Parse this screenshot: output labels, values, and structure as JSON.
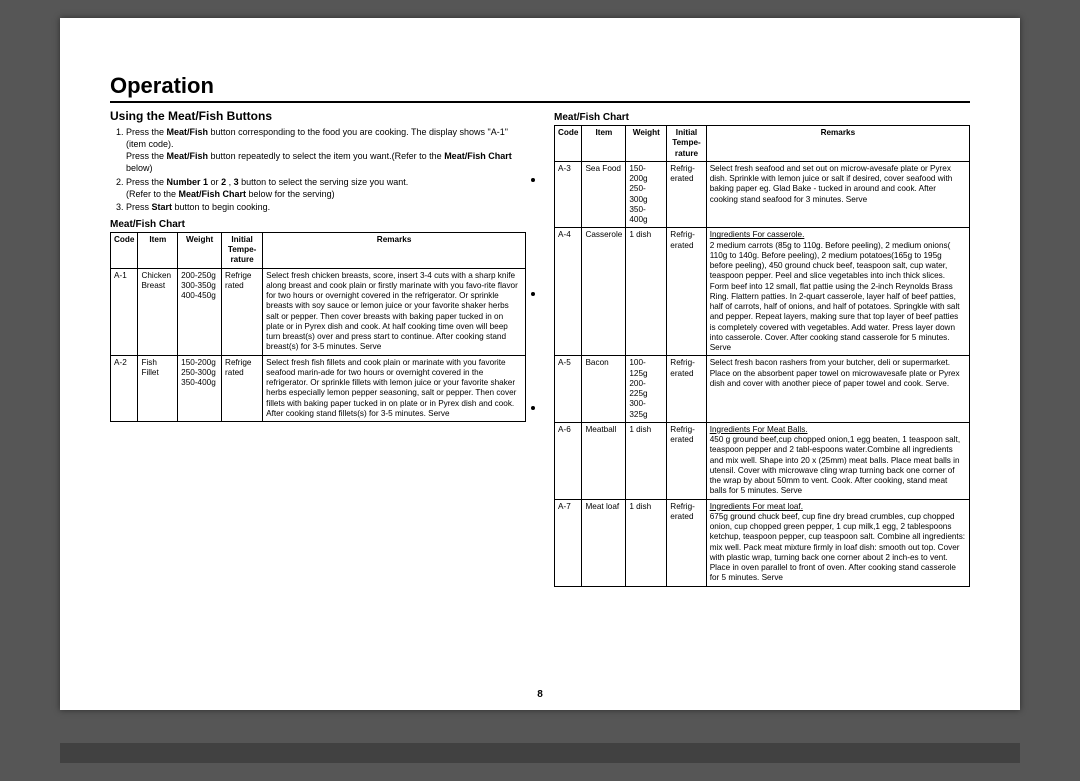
{
  "page_number": "8",
  "title": "Operation",
  "left": {
    "heading": "Using the Meat/Fish Buttons",
    "steps": [
      {
        "num": "1.",
        "text_a": "Press the ",
        "b1": "Meat/Fish",
        "text_b": " button corresponding to the food you are cooking. The display shows \"A-1\"(item code).",
        "sub_a": "Press the ",
        "sub_b1": "Meat/Fish",
        "sub_b": " button repeatedly to select the item you want.(Refer to the ",
        "sub_b2": "Meat/Fish Chart",
        "sub_c": " below)"
      },
      {
        "num": "2.",
        "text_a": "Press the ",
        "b1": "Number 1",
        "text_b": " or ",
        "b2": "2",
        "text_c": " , ",
        "b3": "3",
        "text_d": " button to select the serving size you want.",
        "sub_a": "(Refer to the ",
        "sub_b1": "Meat/Fish Chart",
        "sub_b": " below for the serving)"
      },
      {
        "num": "3.",
        "text_a": "Press ",
        "b1": "Start",
        "text_b": " button to begin cooking."
      }
    ],
    "chart_label": "Meat/Fish Chart",
    "headers": {
      "code": "Code",
      "item": "Item",
      "weight": "Weight",
      "temp": "Initial Tempe-rature",
      "remarks": "Remarks"
    },
    "rows": [
      {
        "code": "A-1",
        "item": "Chicken Breast",
        "weight": "200-250g 300-350g 400-450g",
        "temp": "Refrige rated",
        "remarks": "Select fresh chicken breasts, score, insert 3-4 cuts with a sharp knife along breast and cook plain or firstly marinate with you favo-rite flavor for two hours or overnight covered in the refrigerator. Or sprinkle breasts with soy sauce or lemon juice or your favorite shaker herbs salt or pepper. Then cover breasts with baking paper tucked in on plate or in Pyrex dish and cook. At half cooking time oven will beep  turn breast(s) over and press start to continue. After cooking stand breast(s) for 3-5 minutes. Serve"
      },
      {
        "code": "A-2",
        "item": "Fish Fillet",
        "weight": "150-200g 250-300g 350-400g",
        "temp": "Refrige rated",
        "remarks": "Select fresh fish fillets and cook plain or marinate with you favorite seafood marin-ade for two hours or overnight covered in the refrigerator. Or sprinkle fillets with lemon juice or your favorite shaker herbs especially lemon pepper seasoning, salt or pepper. Then cover fillets with baking paper tucked in on plate or in Pyrex dish and cook. After cooking stand fillets(s) for 3-5 minutes. Serve"
      }
    ]
  },
  "right": {
    "chart_label": "Meat/Fish Chart",
    "headers": {
      "code": "Code",
      "item": "Item",
      "weight": "Weight",
      "temp": "Initial Tempe-rature",
      "remarks": "Remarks"
    },
    "rows": [
      {
        "code": "A-3",
        "item": "Sea Food",
        "weight": "150-200g 250-300g 350-400g",
        "temp": "Refrig-erated",
        "remarks": "Select fresh seafood and set out on microw-avesafe plate or Pyrex dish. Sprinkle with lemon juice or salt if desired, cover seafood with baking paper eg. Glad Bake - tucked in around and cook. After cooking stand seafood for 3 minutes. Serve"
      },
      {
        "code": "A-4",
        "item": "Casserole",
        "weight": "1 dish",
        "temp": "Refrig-erated",
        "remarks_u": "Ingredients For casserole.",
        "remarks": "2 medium carrots (85g to 110g. Before peeling), 2 medium onions( 110g to 140g. Before peeling), 2 medium potatoes(165g to 195g before peeling), 450 ground chuck beef, teaspoon salt, cup water, teaspoon pepper. Peel and slice vegetables into inch thick slices. Form beef into 12 small, flat pattie using the 2-inch Reynolds Brass Ring. Flattern patties. In 2-quart casserole, layer half of beef patties, half of carrots, half of onions, and half of potatoes. Springkle with salt and pepper. Repeat layers, making sure that top layer of beef patties is completely covered with vegetables. Add water. Press layer down into casserole. Cover. After cooking stand casserole for 5 minutes. Serve"
      },
      {
        "code": "A-5",
        "item": "Bacon",
        "weight": "100-125g 200-225g 300-325g",
        "temp": "Refrig-erated",
        "remarks": "Select fresh bacon rashers from your butcher, deli or supermarket. Place on the absorbent paper towel on microwavesafe plate or Pyrex dish and cover with another piece of paper towel and cook. Serve."
      },
      {
        "code": "A-6",
        "item": "Meatball",
        "weight": "1 dish",
        "temp": "Refrig-erated",
        "remarks_u": "Ingredients For Meat Balls.",
        "remarks": "450 g ground beef,cup chopped onion,1 egg beaten, 1 teaspoon salt, teaspoon pepper and 2 tabl-espoons water.Combine all ingredients and mix well. Shape into 20 x  (25mm) meat balls. Place meat balls in utensil. Cover with microwave cling wrap turning back one corner of the wrap by about 50mm to vent. Cook. After cooking, stand meat balls for 5 minutes. Serve"
      },
      {
        "code": "A-7",
        "item": "Meat loaf",
        "weight": "1 dish",
        "temp": "Refrig-erated",
        "remarks_u": "Ingredients For meat loaf.",
        "remarks": "675g ground chuck beef, cup fine dry bread crumbles, cup chopped onion, cup chopped green pepper, 1 cup milk,1 egg, 2 tablespoons ketchup, teaspoon pepper, cup teaspoon salt. Combine all ingredients: mix well. Pack meat mixture firmly in loaf dish: smooth out top. Cover with plastic wrap, turning back one corner about 2 inch-es to vent. Place in oven parallel to front of oven. After cooking stand casserole for 5 minutes. Serve"
      }
    ]
  }
}
